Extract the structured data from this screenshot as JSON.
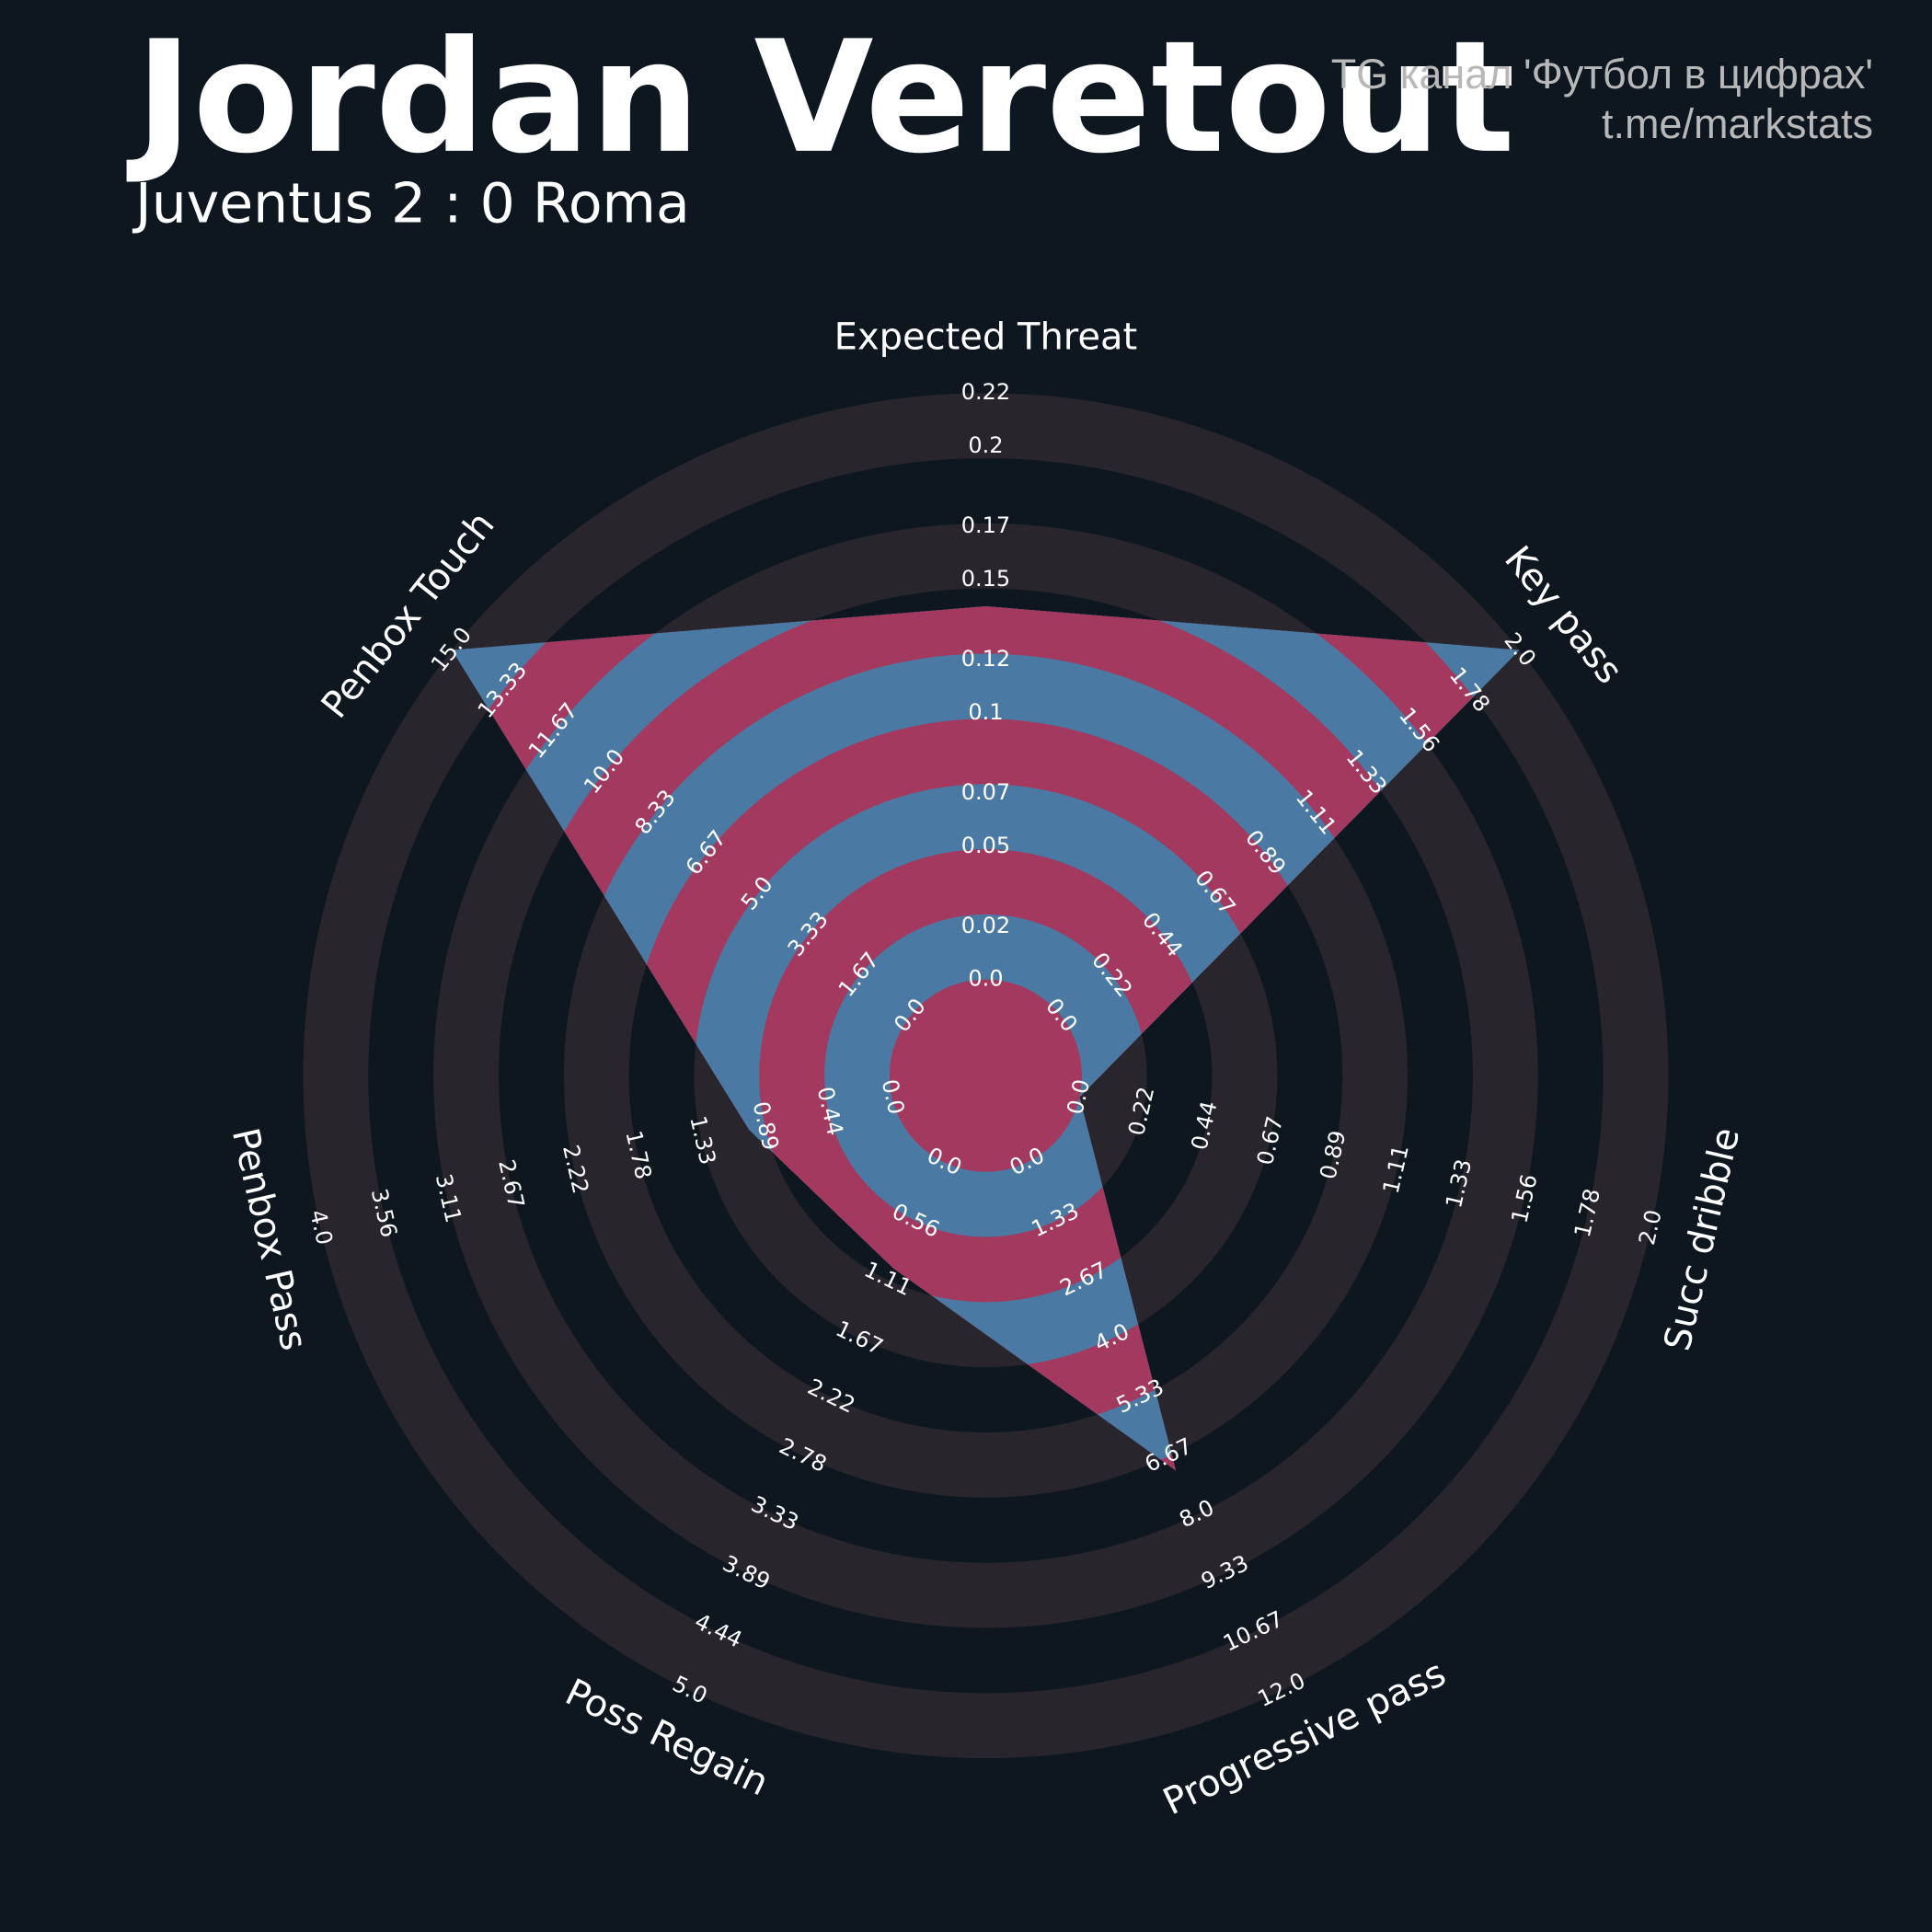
{
  "chart_data": {
    "type": "radar",
    "title": "Jordan Veretout",
    "subtitle": "Juventus 2 : 0 Roma",
    "credits": [
      "TG канал 'Футбол в цифрах'",
      "t.me/markstats"
    ],
    "axes": [
      {
        "name": "Expected Threat",
        "lim": [
          0,
          0.22
        ],
        "ticks": [
          {
            "value": 0,
            "label": "0.0"
          },
          0.02,
          0.05,
          0.07,
          0.1,
          0.12,
          0.15,
          0.17,
          0.2,
          0.22
        ]
      },
      {
        "name": "Key pass",
        "lim": [
          0,
          2
        ],
        "ticks": [
          {
            "value": 0,
            "label": "0.0"
          },
          0.22,
          0.44,
          0.67,
          0.89,
          1.11,
          1.33,
          1.56,
          1.78,
          {
            "value": 2,
            "label": "2.0"
          }
        ]
      },
      {
        "name": "Succ dribble",
        "lim": [
          0,
          2
        ],
        "ticks": [
          {
            "value": 0,
            "label": "0.0"
          },
          0.22,
          0.44,
          0.67,
          0.89,
          1.11,
          1.33,
          1.56,
          1.78,
          {
            "value": 2,
            "label": "2.0"
          }
        ]
      },
      {
        "name": "Progressive pass",
        "lim": [
          0,
          12
        ],
        "ticks": [
          {
            "value": 0,
            "label": "0.0"
          },
          1.33,
          2.67,
          {
            "value": 4,
            "label": "4.0"
          },
          5.33,
          6.67,
          {
            "value": 8,
            "label": "8.0"
          },
          9.33,
          10.67,
          {
            "value": 12,
            "label": "12.0"
          }
        ]
      },
      {
        "name": "Poss Regain",
        "lim": [
          0,
          5
        ],
        "ticks": [
          {
            "value": 0,
            "label": "0.0"
          },
          0.56,
          1.11,
          1.67,
          2.22,
          2.78,
          3.33,
          3.89,
          4.44,
          {
            "value": 5,
            "label": "5.0"
          }
        ]
      },
      {
        "name": "Penbox Pass",
        "lim": [
          0,
          4
        ],
        "ticks": [
          {
            "value": 0,
            "label": "0.0"
          },
          0.44,
          0.89,
          1.33,
          1.78,
          2.22,
          2.67,
          3.11,
          3.56,
          {
            "value": 4,
            "label": "4.0"
          }
        ]
      },
      {
        "name": "Penbox Touch",
        "lim": [
          0,
          15
        ],
        "ticks": [
          {
            "value": 0,
            "label": "0.0"
          },
          1.67,
          3.33,
          {
            "value": 5,
            "label": "5.0"
          },
          6.67,
          8.33,
          {
            "value": 10,
            "label": "10.0"
          },
          11.67,
          13.33,
          {
            "value": 15,
            "label": "15.0"
          }
        ]
      }
    ],
    "values": [
      0.14,
      2,
      0,
      7,
      1,
      1,
      15
    ],
    "color": "#4a7aa3",
    "alt_color": "#a3395e",
    "ring_color": "#28252c"
  }
}
